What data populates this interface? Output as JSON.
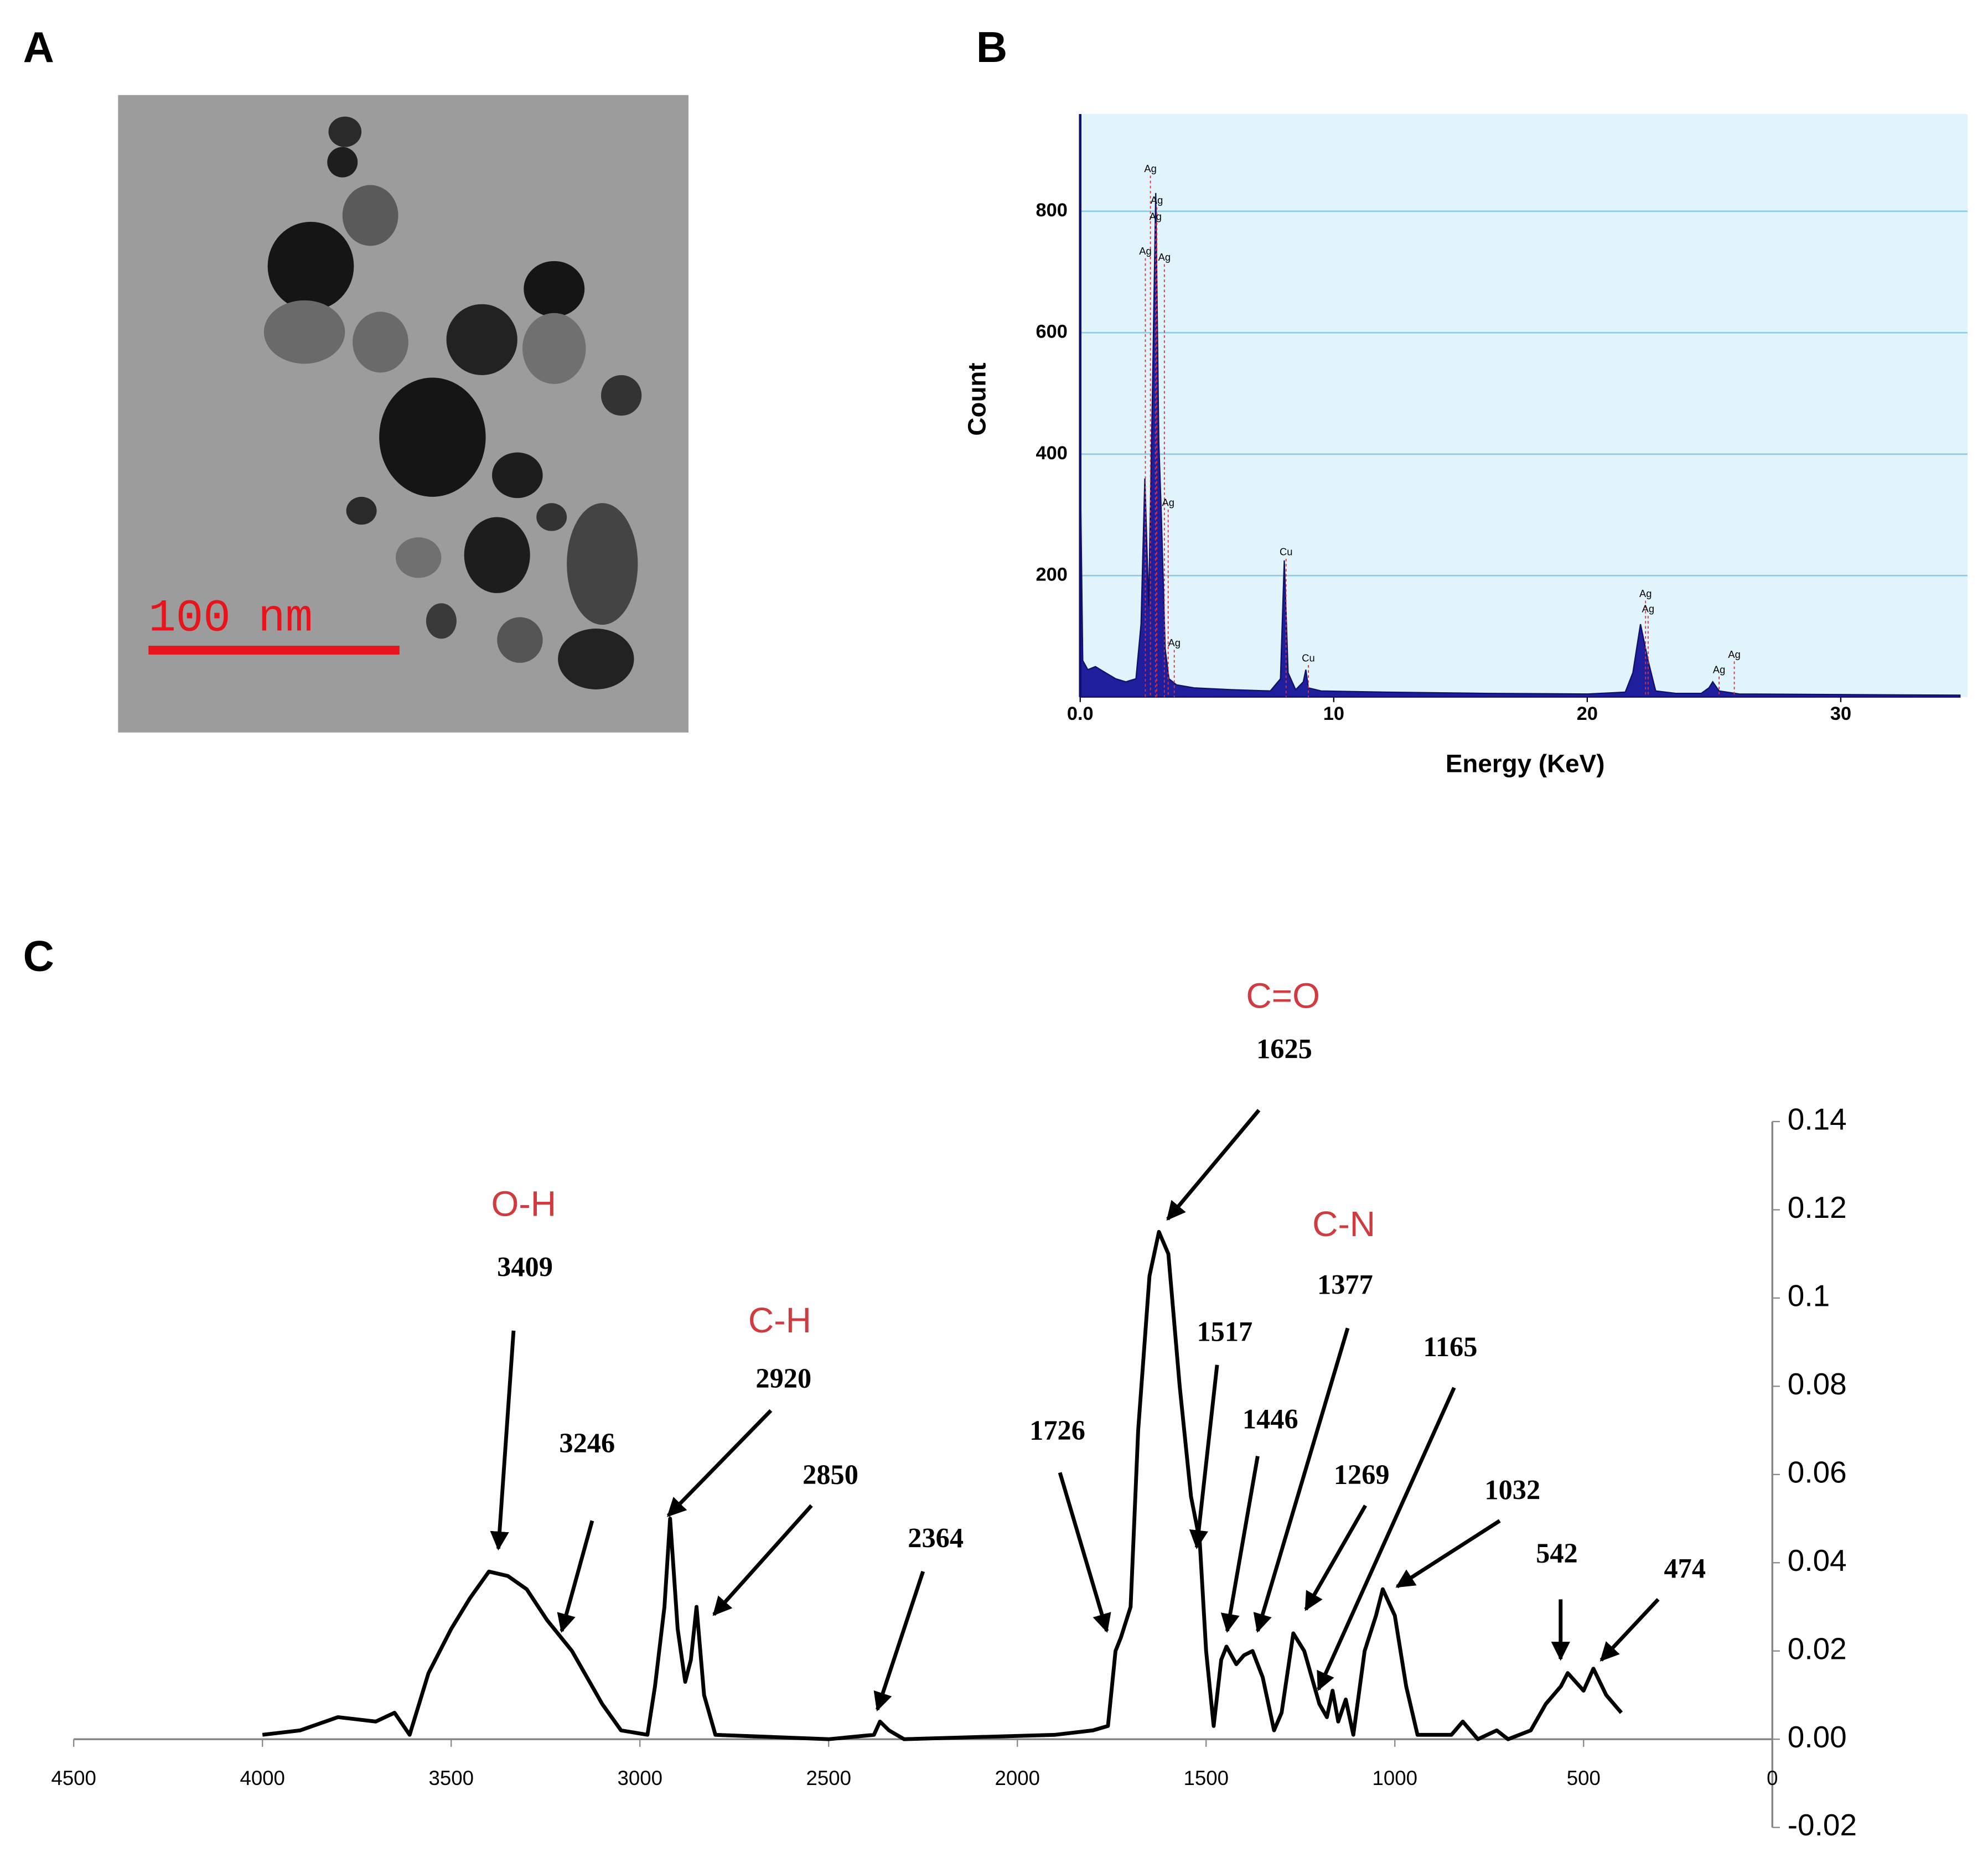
{
  "panel_labels": [
    "A",
    "B",
    "C"
  ],
  "image": {
    "scale_bar_label": "100 nm"
  },
  "chart_data": [
    {
      "type": "area",
      "xlabel": "Energy (KeV)",
      "ylabel": "Count",
      "color": "#1f1f9e",
      "background": "#e1f3fb",
      "grid": true,
      "xlim": [
        0,
        35
      ],
      "ylim": [
        0,
        960
      ],
      "xticks": [
        {
          "value": 0,
          "label": "0.0"
        },
        10,
        20,
        30
      ],
      "yticks": [
        200,
        400,
        600,
        800
      ],
      "x": [
        0,
        0.1,
        0.3,
        0.6,
        1.0,
        1.4,
        1.8,
        2.2,
        2.4,
        2.55,
        2.7,
        2.85,
        2.98,
        3.1,
        3.2,
        3.35,
        3.5,
        3.8,
        4.5,
        6,
        7.5,
        7.9,
        8.05,
        8.2,
        8.5,
        8.8,
        8.9,
        9.0,
        9.5,
        12,
        16,
        20,
        21.5,
        21.8,
        22.1,
        22.4,
        22.7,
        23.5,
        24.5,
        24.8,
        24.95,
        25.2,
        26,
        30,
        34.7
      ],
      "values": [
        390,
        60,
        45,
        50,
        40,
        30,
        25,
        30,
        120,
        360,
        150,
        500,
        830,
        420,
        300,
        80,
        30,
        20,
        15,
        12,
        10,
        30,
        225,
        40,
        12,
        25,
        45,
        15,
        10,
        8,
        6,
        5,
        8,
        40,
        120,
        60,
        10,
        6,
        6,
        15,
        25,
        10,
        5,
        4,
        3
      ],
      "annotations": [
        {
          "text": "Ag",
          "x": 2.77,
          "y": 869
        },
        {
          "text": "Ag",
          "x": 3.02,
          "y": 817
        },
        {
          "text": "Ag",
          "x": 2.97,
          "y": 790
        },
        {
          "text": "Ag",
          "x": 2.57,
          "y": 733
        },
        {
          "text": "Ag",
          "x": 3.32,
          "y": 723
        },
        {
          "text": "Ag",
          "x": 3.47,
          "y": 319
        },
        {
          "text": "Ag",
          "x": 3.71,
          "y": 88
        },
        {
          "text": "Cu",
          "x": 8.12,
          "y": 238
        },
        {
          "text": "Cu",
          "x": 9.0,
          "y": 63
        },
        {
          "text": "Ag",
          "x": 22.3,
          "y": 169
        },
        {
          "text": "Ag",
          "x": 22.4,
          "y": 144
        },
        {
          "text": "Ag",
          "x": 25.2,
          "y": 44
        },
        {
          "text": "Ag",
          "x": 25.8,
          "y": 69
        }
      ]
    },
    {
      "type": "line",
      "color": "#000000",
      "xlim": [
        4500,
        0
      ],
      "ylim": [
        -0.02,
        0.14
      ],
      "xticks": [
        4500,
        4000,
        3500,
        3000,
        2500,
        2000,
        1500,
        1000,
        500,
        0
      ],
      "yticks": [
        0.14,
        0.12,
        0.1,
        0.08,
        0.06,
        0.04,
        0.02,
        {
          "value": 0,
          "label": "0.00"
        },
        -0.02
      ],
      "x": [
        4000,
        3900,
        3800,
        3700,
        3650,
        3610,
        3560,
        3500,
        3450,
        3400,
        3350,
        3300,
        3246,
        3180,
        3100,
        3050,
        2980,
        2960,
        2935,
        2920,
        2900,
        2880,
        2865,
        2850,
        2830,
        2800,
        2500,
        2380,
        2364,
        2340,
        2300,
        1900,
        1800,
        1760,
        1740,
        1726,
        1700,
        1680,
        1650,
        1625,
        1600,
        1570,
        1540,
        1517,
        1500,
        1480,
        1460,
        1446,
        1420,
        1400,
        1377,
        1350,
        1320,
        1300,
        1269,
        1240,
        1200,
        1180,
        1165,
        1150,
        1130,
        1110,
        1080,
        1050,
        1032,
        1000,
        970,
        940,
        850,
        820,
        780,
        730,
        700,
        640,
        600,
        560,
        542,
        500,
        474,
        440,
        410,
        400
      ],
      "values": [
        0.001,
        0.002,
        0.005,
        0.004,
        0.006,
        0.001,
        0.015,
        0.025,
        0.032,
        0.038,
        0.037,
        0.034,
        0.027,
        0.02,
        0.008,
        0.002,
        0.001,
        0.012,
        0.03,
        0.05,
        0.025,
        0.013,
        0.018,
        0.03,
        0.01,
        0.001,
        0.0,
        0.001,
        0.004,
        0.002,
        0.0,
        0.001,
        0.002,
        0.003,
        0.02,
        0.023,
        0.03,
        0.07,
        0.105,
        0.115,
        0.11,
        0.08,
        0.055,
        0.045,
        0.02,
        0.003,
        0.018,
        0.021,
        0.017,
        0.019,
        0.02,
        0.014,
        0.002,
        0.006,
        0.024,
        0.02,
        0.008,
        0.005,
        0.011,
        0.004,
        0.009,
        0.001,
        0.02,
        0.028,
        0.034,
        0.028,
        0.012,
        0.001,
        0.001,
        0.004,
        0.0,
        0.002,
        0.0,
        0.002,
        0.008,
        0.012,
        0.015,
        0.011,
        0.016,
        0.01,
        0.007,
        0.006
      ],
      "annotations": [
        {
          "text": "O-H",
          "color": "#d13a3f"
        },
        {
          "text": "3409"
        },
        {
          "text": "3246"
        },
        {
          "text": "C-H",
          "color": "#d13a3f"
        },
        {
          "text": "2920"
        },
        {
          "text": "2850"
        },
        {
          "text": "2364"
        },
        {
          "text": "1726"
        },
        {
          "text": "C=O",
          "color": "#d13a3f"
        },
        {
          "text": "1625"
        },
        {
          "text": "1517"
        },
        {
          "text": "1446"
        },
        {
          "text": "C-N",
          "color": "#d13a3f"
        },
        {
          "text": "1377"
        },
        {
          "text": "1269"
        },
        {
          "text": "1165"
        },
        {
          "text": "1032"
        },
        {
          "text": "542"
        },
        {
          "text": "474"
        }
      ]
    }
  ]
}
